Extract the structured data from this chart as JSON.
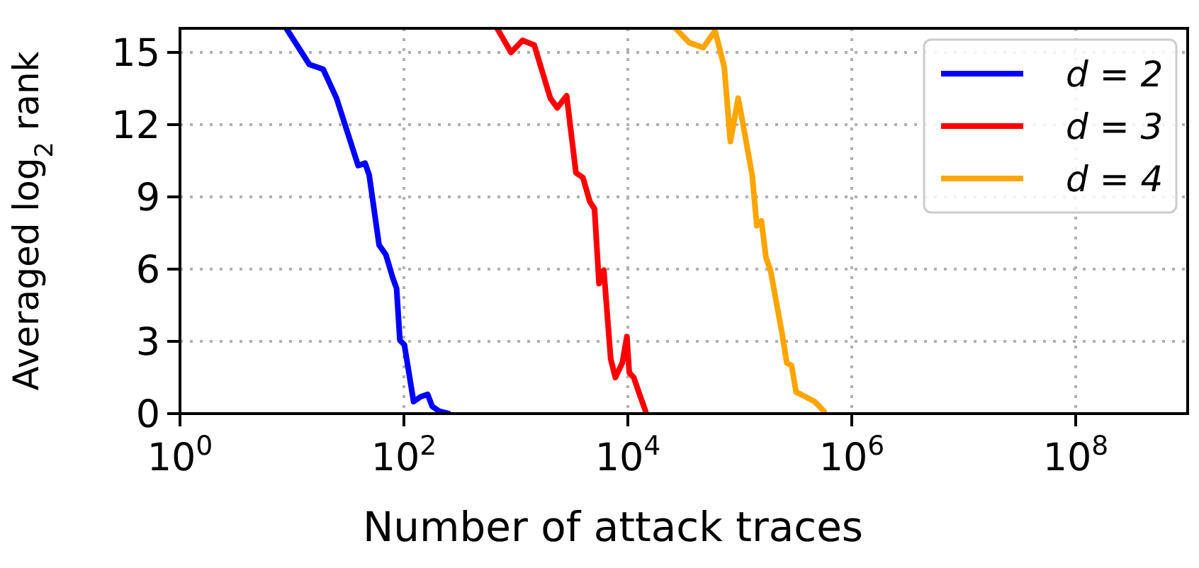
{
  "chart_data": {
    "type": "line",
    "xlabel": "Number of attack traces",
    "ylabel": "Averaged log$_{2}$ rank",
    "log": "x",
    "xlim": [
      1,
      1000000000
    ],
    "xticks": [
      {
        "value": 1,
        "label": "10$^{0}$"
      },
      {
        "value": 100,
        "label": "10$^{2}$"
      },
      {
        "value": 10000,
        "label": "10$^{4}$"
      },
      {
        "value": 1000000,
        "label": "10$^{6}$"
      },
      {
        "value": 100000000,
        "label": "10$^{8}$"
      }
    ],
    "ylim": [
      0,
      16
    ],
    "yticks": [
      0,
      3,
      6,
      9,
      12,
      15
    ],
    "grid": true,
    "legend": "top right",
    "line_style": "solid",
    "marker": "none",
    "series": [
      {
        "name": "d = 2",
        "color": "#0000ff",
        "x": [
          8.9,
          14.3,
          19,
          25,
          39,
          45,
          49,
          60,
          69,
          80,
          86,
          92,
          101,
          122,
          141,
          163,
          179,
          206,
          250
        ],
        "values": [
          16,
          14.5,
          14.3,
          13.1,
          10.3,
          10.4,
          9.9,
          7,
          6.6,
          5.6,
          5.2,
          3.05,
          2.85,
          0.5,
          0.7,
          0.8,
          0.3,
          0.1,
          0
        ]
      },
      {
        "name": "d = 3",
        "color": "#ff0000",
        "x": [
          680,
          905,
          1148,
          1460,
          2030,
          2340,
          2840,
          3440,
          3970,
          4580,
          5040,
          5530,
          6100,
          7030,
          7730,
          8920,
          9800,
          10300,
          11300,
          12500,
          14400
        ],
        "values": [
          16,
          15,
          15.5,
          15.3,
          13.1,
          12.7,
          13.2,
          10,
          9.8,
          8.8,
          8.5,
          5.4,
          5.96,
          2.27,
          1.5,
          2.1,
          3.2,
          1.7,
          1.5,
          0.9,
          0.1
        ]
      },
      {
        "name": "d = 4",
        "color": "#ffa500",
        "x": [
          26700,
          35500,
          47200,
          60100,
          72600,
          82400,
          96700,
          106000,
          129000,
          142000,
          156000,
          171000,
          189000,
          239000,
          263000,
          290000,
          318000,
          386000,
          466000,
          564000
        ],
        "values": [
          16,
          15.4,
          15.2,
          15.9,
          14.4,
          11.3,
          13.1,
          12.1,
          9.9,
          7.8,
          8,
          6.5,
          5.9,
          3.3,
          2.1,
          2,
          0.9,
          0.7,
          0.5,
          0.1
        ]
      }
    ]
  }
}
